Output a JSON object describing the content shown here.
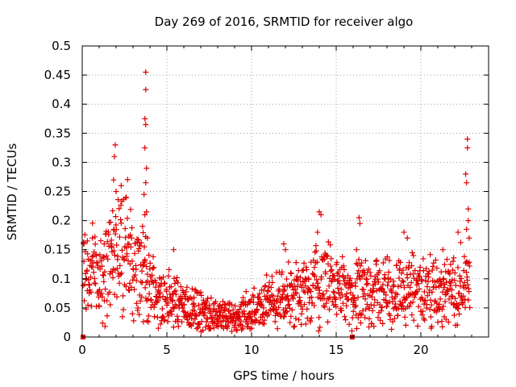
{
  "chart_data": {
    "type": "scatter",
    "title": "Day 269 of 2016, SRMTID for receiver algo",
    "xlabel": "GPS time / hours",
    "ylabel": "SRMTID / TECUs",
    "xlim": [
      0,
      24
    ],
    "ylim": [
      0,
      0.5
    ],
    "x_ticks": [
      0,
      5,
      10,
      15,
      20
    ],
    "y_ticks": [
      0,
      0.05,
      0.1,
      0.15,
      0.2,
      0.25,
      0.3,
      0.35,
      0.4,
      0.45,
      0.5
    ],
    "x_tick_labels": [
      "0",
      "5",
      "10",
      "15",
      "20"
    ],
    "y_tick_labels": [
      "0",
      "0.05",
      "0.1",
      "0.15",
      "0.2",
      "0.25",
      "0.3",
      "0.35",
      "0.4",
      "0.45",
      "0.5"
    ],
    "grid": true,
    "marker": "plus",
    "color": "#e00000",
    "series": [
      {
        "name": "SRMTID",
        "baseline": [
          [
            0.0,
            0.12
          ],
          [
            0.5,
            0.11
          ],
          [
            1.0,
            0.11
          ],
          [
            1.5,
            0.12
          ],
          [
            2.0,
            0.15
          ],
          [
            2.5,
            0.16
          ],
          [
            3.0,
            0.12
          ],
          [
            3.5,
            0.11
          ],
          [
            4.0,
            0.09
          ],
          [
            4.5,
            0.07
          ],
          [
            5.0,
            0.065
          ],
          [
            6.0,
            0.055
          ],
          [
            7.0,
            0.045
          ],
          [
            8.0,
            0.035
          ],
          [
            9.0,
            0.035
          ],
          [
            10.0,
            0.045
          ],
          [
            11.0,
            0.06
          ],
          [
            12.0,
            0.07
          ],
          [
            13.0,
            0.07
          ],
          [
            14.0,
            0.1
          ],
          [
            15.0,
            0.08
          ],
          [
            16.0,
            0.07
          ],
          [
            17.0,
            0.08
          ],
          [
            18.0,
            0.08
          ],
          [
            19.0,
            0.08
          ],
          [
            20.0,
            0.085
          ],
          [
            21.0,
            0.075
          ],
          [
            22.0,
            0.08
          ],
          [
            22.8,
            0.1
          ]
        ],
        "spikes": [
          [
            1.95,
            0.33
          ],
          [
            1.9,
            0.31
          ],
          [
            1.85,
            0.27
          ],
          [
            2.0,
            0.25
          ],
          [
            2.3,
            0.26
          ],
          [
            2.6,
            0.24
          ],
          [
            3.75,
            0.455
          ],
          [
            3.75,
            0.425
          ],
          [
            3.7,
            0.375
          ],
          [
            3.75,
            0.365
          ],
          [
            3.7,
            0.325
          ],
          [
            3.8,
            0.29
          ],
          [
            3.75,
            0.265
          ],
          [
            3.65,
            0.245
          ],
          [
            3.8,
            0.215
          ],
          [
            3.7,
            0.21
          ],
          [
            3.85,
            0.17
          ],
          [
            5.4,
            0.15
          ],
          [
            11.9,
            0.16
          ],
          [
            12.0,
            0.15
          ],
          [
            14.0,
            0.215
          ],
          [
            14.1,
            0.21
          ],
          [
            13.9,
            0.18
          ],
          [
            16.35,
            0.205
          ],
          [
            16.4,
            0.195
          ],
          [
            16.2,
            0.15
          ],
          [
            19.0,
            0.18
          ],
          [
            19.2,
            0.17
          ],
          [
            21.3,
            0.15
          ],
          [
            22.2,
            0.18
          ],
          [
            22.75,
            0.34
          ],
          [
            22.75,
            0.325
          ],
          [
            22.65,
            0.28
          ],
          [
            22.7,
            0.265
          ],
          [
            22.8,
            0.22
          ],
          [
            22.8,
            0.2
          ],
          [
            22.7,
            0.185
          ],
          [
            22.85,
            0.17
          ],
          [
            0.1,
            0.13
          ],
          [
            0.3,
            0.165
          ],
          [
            0.6,
            0.17
          ],
          [
            1.3,
            0.16
          ],
          [
            1.7,
            0.16
          ]
        ],
        "zero_markers": [
          [
            0.05,
            0.0
          ],
          [
            15.95,
            0.0
          ]
        ]
      }
    ]
  }
}
